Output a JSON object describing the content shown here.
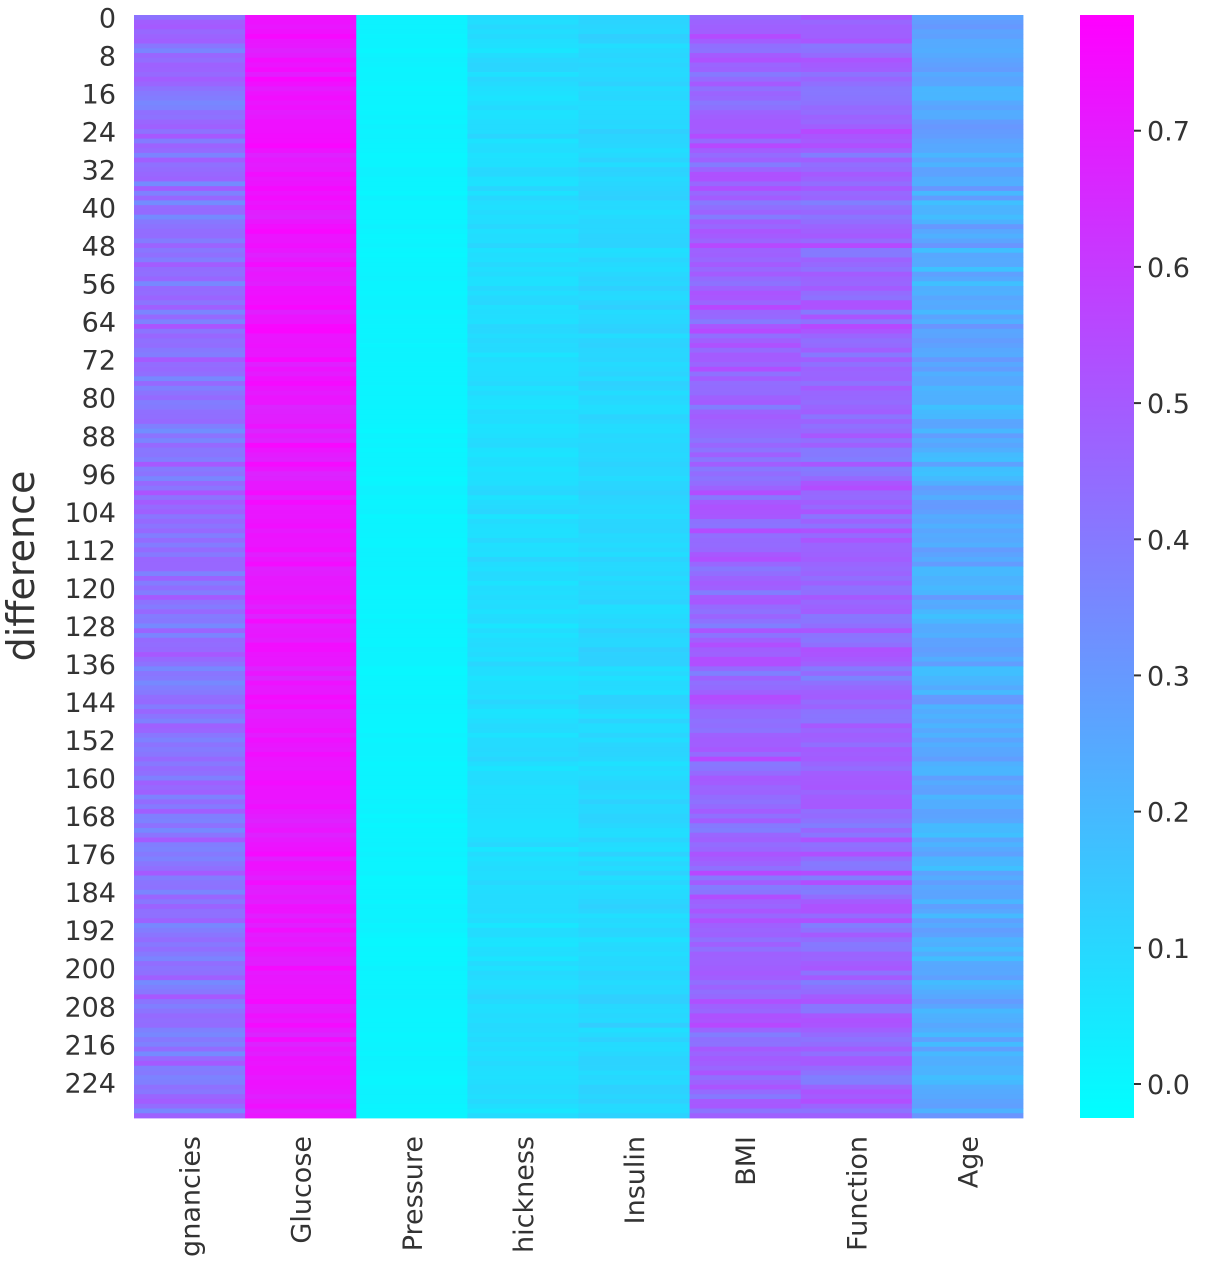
{
  "chart_data": {
    "type": "heatmap",
    "title": "",
    "xlabel": "",
    "ylabel": "difference",
    "row_count": 232,
    "y_tick_labels": [
      "0",
      "8",
      "16",
      "24",
      "32",
      "40",
      "48",
      "56",
      "64",
      "72",
      "80",
      "88",
      "96",
      "104",
      "112",
      "120",
      "128",
      "136",
      "144",
      "152",
      "160",
      "168",
      "176",
      "184",
      "192",
      "200",
      "208",
      "216",
      "224"
    ],
    "columns": [
      {
        "label": "gnancies",
        "base": 0.43,
        "spread": 0.09
      },
      {
        "label": "Glucose",
        "base": 0.72,
        "spread": 0.05
      },
      {
        "label": "Pressure",
        "base": 0.01,
        "spread": 0.01
      },
      {
        "label": "hickness",
        "base": 0.08,
        "spread": 0.03
      },
      {
        "label": "Insulin",
        "base": 0.1,
        "spread": 0.03
      },
      {
        "label": "BMI",
        "base": 0.47,
        "spread": 0.09
      },
      {
        "label": "Function",
        "base": 0.46,
        "spread": 0.09
      },
      {
        "label": "Age",
        "base": 0.24,
        "spread": 0.07
      }
    ],
    "colormap": "cool",
    "colormap_start": "#00ffff",
    "colormap_end": "#ff00ff",
    "vmin": -0.025,
    "vmax": 0.785,
    "colorbar_ticks": [
      {
        "value": 0.0,
        "label": "0.0"
      },
      {
        "value": 0.1,
        "label": "0.1"
      },
      {
        "value": 0.2,
        "label": "0.2"
      },
      {
        "value": 0.3,
        "label": "0.3"
      },
      {
        "value": 0.4,
        "label": "0.4"
      },
      {
        "value": 0.5,
        "label": "0.5"
      },
      {
        "value": 0.6,
        "label": "0.6"
      },
      {
        "value": 0.7,
        "label": "0.7"
      }
    ],
    "grid": false
  }
}
